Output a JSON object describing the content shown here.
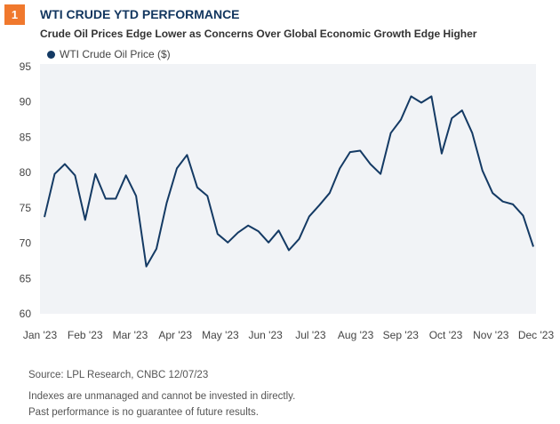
{
  "header": {
    "badge": "1",
    "title": "WTI CRUDE YTD PERFORMANCE",
    "subtitle": "Crude Oil Prices Edge Lower as Concerns Over Global Economic Growth Edge Higher"
  },
  "footer": {
    "source": "Source: LPL Research, CNBC 12/07/23",
    "note1": "Indexes are unmanaged and cannot be invested in directly.",
    "note2": "Past performance is no guarantee of future results."
  },
  "colors": {
    "line": "#143a64",
    "badge": "#f0782d",
    "plot_bg": "#f1f3f6"
  },
  "chart_data": {
    "type": "line",
    "title": "WTI CRUDE YTD PERFORMANCE",
    "legend": [
      "WTI Crude Oil Price ($)"
    ],
    "legend_position": "top-left",
    "xlabel": "",
    "ylabel": "",
    "ylim": [
      60,
      95
    ],
    "yticks": [
      60,
      65,
      70,
      75,
      80,
      85,
      90,
      95
    ],
    "xticks": [
      "Jan '23",
      "Feb '23",
      "Mar '23",
      "Apr '23",
      "May '23",
      "Jun '23",
      "Jul '23",
      "Aug '23",
      "Sep '23",
      "Oct '23",
      "Nov '23",
      "Dec '23"
    ],
    "grid": false,
    "series": [
      {
        "name": "WTI Crude Oil Price ($)",
        "values": [
          73.7,
          79.8,
          81.2,
          79.6,
          73.3,
          79.8,
          76.3,
          76.3,
          79.6,
          76.7,
          66.7,
          69.2,
          75.7,
          80.6,
          82.5,
          77.9,
          76.7,
          71.3,
          70.1,
          71.5,
          72.5,
          71.7,
          70.1,
          71.8,
          69.0,
          70.6,
          73.8,
          75.4,
          77.1,
          80.6,
          82.9,
          83.1,
          81.2,
          79.8,
          85.6,
          87.5,
          90.8,
          89.9,
          90.8,
          82.7,
          87.7,
          88.8,
          85.6,
          80.3,
          77.1,
          75.9,
          75.5,
          73.9,
          69.5
        ]
      }
    ]
  }
}
